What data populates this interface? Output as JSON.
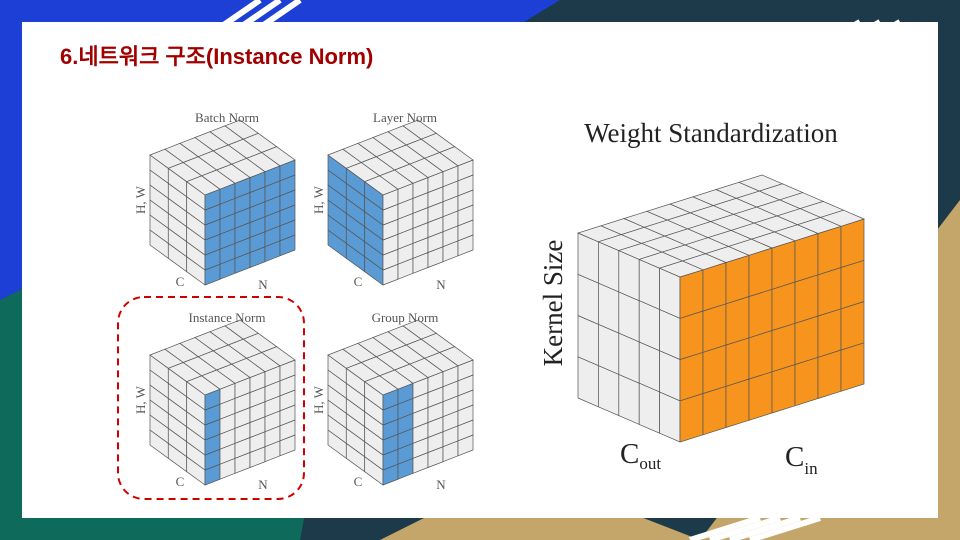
{
  "slide": {
    "title": "6.네트워크 구조(Instance Norm)"
  },
  "norm_diagrams": [
    {
      "id": "batch",
      "title": "Batch Norm",
      "axis_hw": "H, W",
      "axis_c": "C",
      "axis_n": "N"
    },
    {
      "id": "layer",
      "title": "Layer Norm",
      "axis_hw": "H, W",
      "axis_c": "C",
      "axis_n": "N"
    },
    {
      "id": "instance",
      "title": "Instance Norm",
      "axis_hw": "H, W",
      "axis_c": "C",
      "axis_n": "N",
      "highlighted": true
    },
    {
      "id": "group",
      "title": "Group Norm",
      "axis_hw": "H, W",
      "axis_c": "C",
      "axis_n": "N"
    }
  ],
  "weight_std": {
    "title": "Weight Standardization",
    "ylabel": "Kernel Size",
    "cout_main": "C",
    "cout_sub": "out",
    "cin_main": "C",
    "cin_sub": "in"
  },
  "colors": {
    "norm_highlight": "#5b9bd5",
    "ws_highlight": "#f7941d",
    "cube_gray": "#eeeeee",
    "dashed_outline": "#d00000",
    "title_red": "#a00000"
  }
}
